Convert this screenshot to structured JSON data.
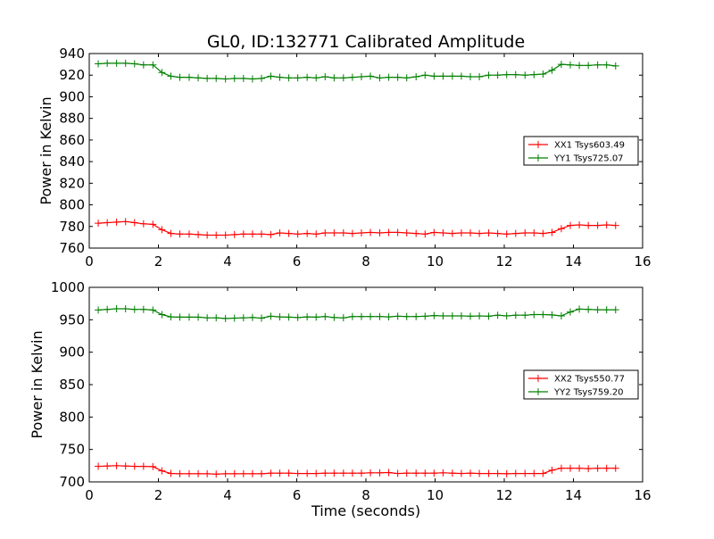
{
  "chart_data": [
    {
      "type": "line",
      "title": "GL0, ID:132771 Calibrated Amplitude",
      "xlabel": "",
      "ylabel": "Power in Kelvin",
      "xlim": [
        0,
        16
      ],
      "ylim": [
        760,
        940
      ],
      "xticks": [
        0,
        2,
        4,
        6,
        8,
        10,
        12,
        14,
        16
      ],
      "yticks": [
        760,
        780,
        800,
        820,
        840,
        860,
        880,
        900,
        920,
        940
      ],
      "legend_position": "center-right",
      "x": [
        0.26,
        0.52,
        0.79,
        1.05,
        1.31,
        1.57,
        1.84,
        2.1,
        2.36,
        2.62,
        2.89,
        3.15,
        3.41,
        3.67,
        3.94,
        4.2,
        4.46,
        4.72,
        4.98,
        5.25,
        5.51,
        5.77,
        6.03,
        6.3,
        6.56,
        6.82,
        7.08,
        7.35,
        7.61,
        7.87,
        8.13,
        8.4,
        8.66,
        8.92,
        9.18,
        9.45,
        9.71,
        9.97,
        10.23,
        10.5,
        10.76,
        11.02,
        11.28,
        11.55,
        11.81,
        12.07,
        12.33,
        12.6,
        12.86,
        13.12,
        13.38,
        13.65,
        13.91,
        14.17,
        14.43,
        14.7,
        14.96,
        15.22
      ],
      "series": [
        {
          "name": "XX1 Tsys603.49",
          "color": "#ff0000",
          "values": [
            783,
            783.5,
            784,
            784.5,
            783.5,
            782.5,
            782,
            777,
            773.5,
            773,
            773,
            772.5,
            772,
            772,
            772,
            772.5,
            773,
            773,
            773,
            772.5,
            774,
            773.5,
            773,
            773.5,
            773,
            774,
            774,
            774,
            773.5,
            774,
            774.5,
            774,
            774.5,
            774.5,
            774,
            773.5,
            773,
            774.5,
            774,
            773.5,
            774,
            774,
            773.5,
            774,
            773.5,
            773,
            773.5,
            774,
            774,
            773.5,
            774.5,
            778,
            781,
            781.5,
            781,
            781,
            781.5,
            781
          ]
        },
        {
          "name": "YY1 Tsys725.07",
          "color": "#008000",
          "values": [
            930.5,
            931,
            931,
            931,
            930.5,
            929.5,
            929.5,
            922.5,
            919,
            918,
            918,
            917.5,
            917,
            917,
            916.5,
            917,
            917,
            916.5,
            917,
            919,
            918,
            917.5,
            917.5,
            918,
            917.5,
            918.5,
            917.5,
            917.5,
            918,
            918.5,
            919,
            917.5,
            918,
            918,
            917.5,
            918.5,
            920,
            919,
            919,
            919,
            919,
            918.5,
            918.5,
            920,
            920,
            920.5,
            920.5,
            920,
            920.5,
            921,
            924.5,
            930,
            929.5,
            929,
            929,
            929.5,
            929.5,
            928.5
          ]
        }
      ]
    },
    {
      "type": "line",
      "title": "",
      "xlabel": "Time (seconds)",
      "ylabel": "Power in Kelvin",
      "xlim": [
        0,
        16
      ],
      "ylim": [
        700,
        1000
      ],
      "xticks": [
        0,
        2,
        4,
        6,
        8,
        10,
        12,
        14,
        16
      ],
      "yticks": [
        700,
        750,
        800,
        850,
        900,
        950,
        1000
      ],
      "legend_position": "center-right",
      "x": [
        0.26,
        0.52,
        0.79,
        1.05,
        1.31,
        1.57,
        1.84,
        2.1,
        2.36,
        2.62,
        2.89,
        3.15,
        3.41,
        3.67,
        3.94,
        4.2,
        4.46,
        4.72,
        4.98,
        5.25,
        5.51,
        5.77,
        6.03,
        6.3,
        6.56,
        6.82,
        7.08,
        7.35,
        7.61,
        7.87,
        8.13,
        8.4,
        8.66,
        8.92,
        9.18,
        9.45,
        9.71,
        9.97,
        10.23,
        10.5,
        10.76,
        11.02,
        11.28,
        11.55,
        11.81,
        12.07,
        12.33,
        12.6,
        12.86,
        13.12,
        13.38,
        13.65,
        13.91,
        14.17,
        14.43,
        14.7,
        14.96,
        15.22
      ],
      "series": [
        {
          "name": "XX2 Tsys550.77",
          "color": "#ff0000",
          "values": [
            724,
            724.5,
            725,
            724.5,
            724,
            724,
            723.5,
            717,
            713,
            712.5,
            712.5,
            712.5,
            712.5,
            712,
            712.5,
            712.5,
            712.5,
            712.5,
            712.5,
            713.5,
            713.5,
            713.5,
            713,
            713,
            713,
            713.5,
            713.5,
            713.5,
            713.5,
            713.5,
            714,
            714,
            714.5,
            713,
            713.5,
            713.5,
            713.5,
            713.5,
            714,
            713.5,
            713,
            713.5,
            713,
            713,
            713,
            712.5,
            713,
            713,
            713,
            713,
            718,
            721,
            721,
            721,
            720.5,
            721,
            721,
            721
          ]
        },
        {
          "name": "YY2 Tsys759.20",
          "color": "#008000",
          "values": [
            965,
            966,
            967,
            967,
            966,
            966,
            965,
            958,
            954.5,
            954,
            954,
            954,
            953,
            953,
            952,
            952.5,
            953,
            953.5,
            952.5,
            955.5,
            954.5,
            954,
            953.5,
            954.5,
            954,
            955,
            953.5,
            953,
            955,
            955,
            955,
            955,
            954.5,
            955.5,
            955,
            955,
            955.5,
            956.5,
            956,
            956,
            956,
            955.5,
            956,
            955.5,
            957,
            956,
            957,
            957,
            958,
            958,
            957.5,
            956,
            962,
            966.5,
            966,
            965.5,
            965.5,
            965.5
          ]
        }
      ]
    }
  ]
}
